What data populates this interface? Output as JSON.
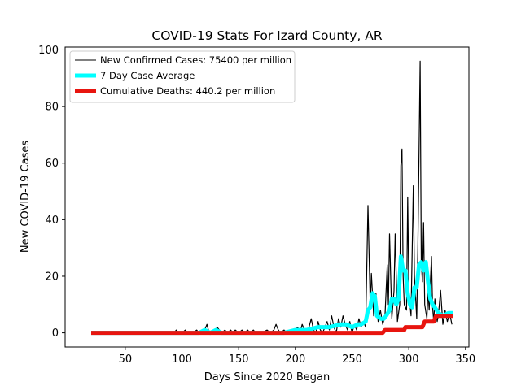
{
  "chart_data": {
    "type": "line",
    "title": "COVID-19 Stats For Izard County, AR",
    "xlabel": "Days Since 2020 Began",
    "ylabel": "New COVID-19 Cases",
    "xlim": [
      -3,
      353
    ],
    "ylim": [
      -5,
      101
    ],
    "xticks": [
      50,
      100,
      150,
      200,
      250,
      300,
      350
    ],
    "yticks": [
      0,
      20,
      40,
      60,
      80,
      100
    ],
    "grid": false,
    "legend_position": "top-left",
    "series": [
      {
        "name": "New Confirmed Cases: 75400 per million",
        "color": "#000000",
        "points": [
          [
            20,
            0
          ],
          [
            40,
            0
          ],
          [
            60,
            0
          ],
          [
            80,
            0
          ],
          [
            93,
            0
          ],
          [
            95,
            1
          ],
          [
            97,
            0
          ],
          [
            100,
            0
          ],
          [
            103,
            1
          ],
          [
            105,
            0
          ],
          [
            110,
            0
          ],
          [
            113,
            1
          ],
          [
            115,
            0
          ],
          [
            118,
            0
          ],
          [
            120,
            1
          ],
          [
            122,
            3
          ],
          [
            124,
            0
          ],
          [
            127,
            1
          ],
          [
            129,
            0
          ],
          [
            131,
            2
          ],
          [
            133,
            1
          ],
          [
            135,
            0
          ],
          [
            138,
            1
          ],
          [
            140,
            0
          ],
          [
            143,
            1
          ],
          [
            145,
            0
          ],
          [
            147,
            1
          ],
          [
            150,
            0
          ],
          [
            153,
            1
          ],
          [
            155,
            0
          ],
          [
            158,
            1
          ],
          [
            160,
            0
          ],
          [
            163,
            1
          ],
          [
            165,
            0
          ],
          [
            170,
            0
          ],
          [
            175,
            1
          ],
          [
            178,
            0
          ],
          [
            181,
            1
          ],
          [
            183,
            3
          ],
          [
            185,
            1
          ],
          [
            187,
            0
          ],
          [
            190,
            1
          ],
          [
            193,
            0
          ],
          [
            195,
            1
          ],
          [
            197,
            0
          ],
          [
            200,
            1
          ],
          [
            202,
            2
          ],
          [
            204,
            0
          ],
          [
            206,
            3
          ],
          [
            208,
            1
          ],
          [
            210,
            0
          ],
          [
            212,
            2
          ],
          [
            214,
            5
          ],
          [
            216,
            1
          ],
          [
            218,
            0
          ],
          [
            220,
            4
          ],
          [
            222,
            1
          ],
          [
            224,
            0
          ],
          [
            226,
            2
          ],
          [
            228,
            4
          ],
          [
            230,
            1
          ],
          [
            232,
            6
          ],
          [
            234,
            2
          ],
          [
            236,
            0
          ],
          [
            238,
            5
          ],
          [
            240,
            2
          ],
          [
            242,
            6
          ],
          [
            244,
            3
          ],
          [
            246,
            1
          ],
          [
            248,
            4
          ],
          [
            250,
            0
          ],
          [
            252,
            3
          ],
          [
            254,
            1
          ],
          [
            256,
            5
          ],
          [
            258,
            2
          ],
          [
            260,
            4
          ],
          [
            262,
            2
          ],
          [
            264,
            45
          ],
          [
            266,
            10
          ],
          [
            267,
            21
          ],
          [
            269,
            6
          ],
          [
            271,
            14
          ],
          [
            273,
            4
          ],
          [
            275,
            8
          ],
          [
            277,
            3
          ],
          [
            279,
            6
          ],
          [
            281,
            24
          ],
          [
            282,
            10
          ],
          [
            283,
            35
          ],
          [
            285,
            5
          ],
          [
            287,
            15
          ],
          [
            288,
            35
          ],
          [
            290,
            4
          ],
          [
            292,
            10
          ],
          [
            293,
            59
          ],
          [
            294,
            65
          ],
          [
            295,
            20
          ],
          [
            296,
            10
          ],
          [
            298,
            8
          ],
          [
            299,
            48
          ],
          [
            300,
            15
          ],
          [
            302,
            6
          ],
          [
            304,
            52
          ],
          [
            305,
            20
          ],
          [
            307,
            5
          ],
          [
            308,
            30
          ],
          [
            310,
            96
          ],
          [
            311,
            25
          ],
          [
            312,
            18
          ],
          [
            313,
            39
          ],
          [
            314,
            10
          ],
          [
            316,
            5
          ],
          [
            317,
            15
          ],
          [
            318,
            8
          ],
          [
            320,
            27
          ],
          [
            321,
            9
          ],
          [
            322,
            4
          ],
          [
            323,
            12
          ],
          [
            325,
            4
          ],
          [
            326,
            6
          ],
          [
            328,
            15
          ],
          [
            330,
            3
          ],
          [
            332,
            8
          ],
          [
            334,
            4
          ],
          [
            336,
            7
          ],
          [
            338,
            3
          ]
        ]
      },
      {
        "name": "7 Day Case Average",
        "color": "#00ffff",
        "points": [
          [
            20,
            0
          ],
          [
            60,
            0
          ],
          [
            100,
            0
          ],
          [
            115,
            0
          ],
          [
            120,
            1
          ],
          [
            125,
            0
          ],
          [
            130,
            1
          ],
          [
            135,
            0
          ],
          [
            160,
            0
          ],
          [
            180,
            0
          ],
          [
            190,
            0
          ],
          [
            200,
            1
          ],
          [
            210,
            1
          ],
          [
            220,
            2
          ],
          [
            230,
            2
          ],
          [
            240,
            3
          ],
          [
            245,
            3
          ],
          [
            250,
            2
          ],
          [
            255,
            3
          ],
          [
            258,
            3
          ],
          [
            262,
            4
          ],
          [
            264,
            8
          ],
          [
            266,
            9
          ],
          [
            268,
            14
          ],
          [
            270,
            13
          ],
          [
            272,
            6
          ],
          [
            275,
            5
          ],
          [
            278,
            5
          ],
          [
            280,
            6
          ],
          [
            283,
            8
          ],
          [
            285,
            12
          ],
          [
            287,
            12
          ],
          [
            289,
            10
          ],
          [
            291,
            12
          ],
          [
            293,
            27
          ],
          [
            295,
            22
          ],
          [
            297,
            22
          ],
          [
            299,
            14
          ],
          [
            301,
            10
          ],
          [
            303,
            9
          ],
          [
            305,
            16
          ],
          [
            307,
            16
          ],
          [
            309,
            24
          ],
          [
            311,
            25
          ],
          [
            313,
            22
          ],
          [
            315,
            25
          ],
          [
            317,
            18
          ],
          [
            319,
            12
          ],
          [
            321,
            10
          ],
          [
            323,
            9
          ],
          [
            326,
            7
          ],
          [
            330,
            6
          ],
          [
            335,
            7
          ],
          [
            339,
            7
          ]
        ]
      },
      {
        "name": "Cumulative Deaths: 440.2 per million",
        "color": "#e8150f",
        "points": [
          [
            20,
            0
          ],
          [
            100,
            0
          ],
          [
            200,
            0
          ],
          [
            277,
            0
          ],
          [
            279,
            1
          ],
          [
            296,
            1
          ],
          [
            297,
            2
          ],
          [
            312,
            2
          ],
          [
            314,
            4
          ],
          [
            322,
            4
          ],
          [
            324,
            6
          ],
          [
            339,
            6
          ]
        ]
      }
    ]
  }
}
